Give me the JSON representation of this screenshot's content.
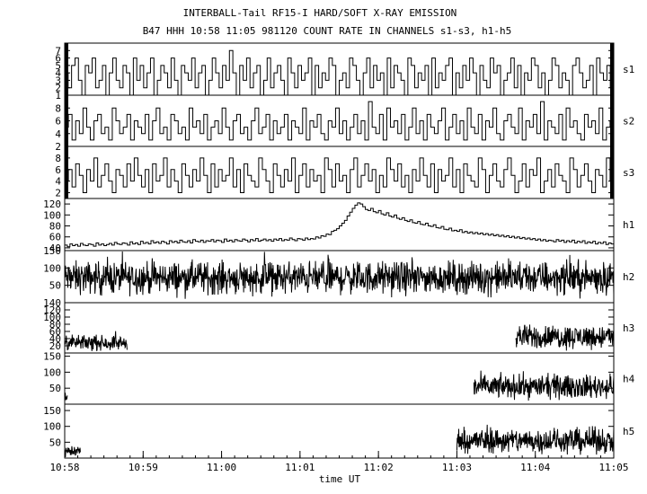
{
  "chart_data": {
    "type": "line",
    "title": "INTERBALL-Tail RF15-I HARD/SOFT X-RAY EMISSION",
    "subtitle": "B47 HHH 10:58 11:05 981120  COUNT RATE IN CHANNELS s1-s3, h1-h5",
    "xlabel": "time UT",
    "x_range": [
      "10:58",
      "11:05"
    ],
    "x_ticks": [
      "10:58",
      "10:59",
      "11:00",
      "11:01",
      "11:02",
      "11:03",
      "11:04",
      "11:05"
    ],
    "panels": [
      {
        "name": "s1",
        "ylim": [
          1,
          8
        ],
        "yticks": [
          "1",
          "2",
          "3",
          "4",
          "5",
          "6",
          "7"
        ],
        "series": [
          {
            "style": "step",
            "x_start": "10:58",
            "x_end": "11:05",
            "samples": 160,
            "values": [
              4,
              2,
              5,
              6,
              3,
              1,
              5,
              4,
              6,
              2,
              3,
              5,
              1,
              4,
              6,
              3,
              2,
              5,
              4,
              1,
              6,
              3,
              5,
              2,
              4,
              6,
              1,
              3,
              5,
              4,
              2,
              6,
              3,
              1,
              5,
              4,
              3,
              6,
              2,
              4,
              5,
              1,
              3,
              6,
              4,
              2,
              5,
              3,
              7,
              4,
              1,
              5,
              3,
              6,
              2,
              4,
              5,
              1,
              3,
              6,
              2,
              4,
              5,
              3,
              1,
              6,
              4,
              2,
              5,
              3,
              4,
              6,
              1,
              5,
              2,
              4,
              3,
              6,
              5,
              1,
              3,
              4,
              2,
              6,
              5,
              3,
              1,
              4,
              6,
              2,
              5,
              3,
              4,
              1,
              6,
              2,
              5,
              4,
              3,
              1,
              6,
              5,
              2,
              4,
              3,
              5,
              1,
              6,
              2,
              4,
              3,
              5,
              6,
              1,
              4,
              2,
              5,
              3,
              6,
              4,
              1,
              5,
              3,
              2,
              6,
              4,
              5,
              1,
              3,
              4,
              6,
              2,
              5,
              1,
              4,
              3,
              6,
              5,
              2,
              4,
              1,
              3,
              6,
              5,
              2,
              4,
              3,
              1,
              5,
              6,
              4,
              2,
              3,
              5,
              1,
              6,
              4,
              3,
              5,
              2
            ]
          }
        ]
      },
      {
        "name": "s2",
        "ylim": [
          2,
          10
        ],
        "yticks": [
          "2",
          "4",
          "6",
          "8"
        ],
        "series": [
          {
            "style": "step",
            "x_start": "10:58",
            "x_end": "11:05",
            "samples": 150,
            "values": [
              5,
              7,
              3,
              6,
              4,
              8,
              5,
              3,
              6,
              7,
              4,
              5,
              3,
              8,
              6,
              4,
              5,
              7,
              3,
              6,
              5,
              4,
              7,
              3,
              6,
              8,
              4,
              5,
              3,
              7,
              6,
              4,
              5,
              3,
              8,
              5,
              6,
              4,
              7,
              3,
              5,
              6,
              4,
              8,
              5,
              3,
              6,
              7,
              4,
              5,
              3,
              6,
              8,
              4,
              5,
              7,
              3,
              6,
              4,
              5,
              7,
              3,
              6,
              5,
              4,
              8,
              3,
              6,
              5,
              7,
              4,
              3,
              6,
              5,
              8,
              4,
              6,
              3,
              5,
              7,
              4,
              6,
              3,
              9,
              5,
              4,
              7,
              3,
              8,
              5,
              6,
              4,
              7,
              3,
              5,
              8,
              4,
              6,
              3,
              7,
              5,
              4,
              6,
              8,
              3,
              5,
              7,
              4,
              6,
              3,
              8,
              5,
              4,
              7,
              3,
              6,
              5,
              8,
              4,
              3,
              6,
              7,
              5,
              4,
              8,
              3,
              6,
              5,
              7,
              4,
              9,
              3,
              6,
              5,
              4,
              7,
              3,
              8,
              5,
              6,
              4,
              3,
              7,
              5,
              6,
              4,
              8,
              3,
              5,
              6
            ]
          }
        ]
      },
      {
        "name": "s3",
        "ylim": [
          1,
          10
        ],
        "yticks": [
          "2",
          "4",
          "6",
          "8"
        ],
        "series": [
          {
            "style": "step",
            "x_start": "10:58",
            "x_end": "11:05",
            "samples": 150,
            "values": [
              4,
              6,
              3,
              7,
              5,
              2,
              6,
              4,
              8,
              3,
              5,
              7,
              4,
              2,
              6,
              5,
              3,
              7,
              4,
              8,
              5,
              3,
              6,
              2,
              7,
              4,
              5,
              8,
              3,
              6,
              4,
              2,
              7,
              5,
              3,
              6,
              4,
              8,
              5,
              2,
              7,
              3,
              6,
              4,
              5,
              8,
              3,
              6,
              2,
              7,
              5,
              4,
              3,
              8,
              6,
              4,
              2,
              7,
              5,
              3,
              6,
              4,
              8,
              2,
              5,
              7,
              3,
              6,
              4,
              5,
              2,
              8,
              6,
              3,
              7,
              4,
              5,
              2,
              6,
              8,
              3,
              5,
              7,
              4,
              6,
              2,
              5,
              3,
              8,
              6,
              4,
              7,
              3,
              5,
              2,
              6,
              4,
              8,
              5,
              3,
              7,
              2,
              6,
              4,
              5,
              8,
              3,
              6,
              2,
              7,
              5,
              4,
              3,
              8,
              6,
              2,
              5,
              7,
              4,
              3,
              6,
              8,
              5,
              2,
              4,
              7,
              3,
              6,
              5,
              8,
              2,
              4,
              6,
              3,
              7,
              5,
              4,
              2,
              8,
              6,
              3,
              5,
              7,
              4,
              2,
              6,
              5,
              3,
              8,
              4
            ]
          }
        ]
      },
      {
        "name": "h1",
        "ylim": [
          35,
          130
        ],
        "yticks": [
          "40",
          "60",
          "80",
          "100",
          "120"
        ],
        "series": [
          {
            "style": "step",
            "x_start": "10:58",
            "x_end": "11:05",
            "samples": 210,
            "values": [
              45,
              42,
              47,
              44,
              46,
              43,
              48,
              45,
              44,
              47,
              46,
              43,
              49,
              45,
              47,
              44,
              46,
              48,
              45,
              50,
              47,
              46,
              49,
              48,
              45,
              51,
              47,
              49,
              46,
              52,
              48,
              50,
              47,
              53,
              49,
              51,
              48,
              52,
              50,
              47,
              53,
              50,
              52,
              49,
              54,
              51,
              50,
              53,
              49,
              55,
              52,
              51,
              54,
              50,
              53,
              52,
              55,
              51,
              54,
              53,
              50,
              56,
              52,
              54,
              51,
              55,
              53,
              52,
              56,
              54,
              51,
              55,
              53,
              57,
              52,
              54,
              56,
              53,
              55,
              52,
              56,
              54,
              57,
              53,
              55,
              54,
              58,
              55,
              53,
              57,
              56,
              54,
              58,
              55,
              57,
              56,
              60,
              58,
              62,
              61,
              65,
              64,
              70,
              72,
              75,
              80,
              85,
              90,
              98,
              105,
              112,
              118,
              122,
              120,
              115,
              110,
              108,
              112,
              106,
              104,
              108,
              102,
              100,
              104,
              98,
              96,
              100,
              94,
              92,
              95,
              90,
              88,
              91,
              86,
              85,
              88,
              83,
              82,
              85,
              80,
              79,
              82,
              77,
              76,
              79,
              74,
              73,
              76,
              71,
              72,
              70,
              73,
              68,
              70,
              67,
              69,
              66,
              68,
              65,
              67,
              64,
              66,
              63,
              65,
              62,
              64,
              61,
              63,
              60,
              62,
              59,
              61,
              58,
              60,
              57,
              59,
              56,
              58,
              55,
              57,
              54,
              56,
              53,
              55,
              52,
              54,
              53,
              51,
              55,
              52,
              54,
              50,
              53,
              51,
              54,
              49,
              52,
              50,
              53,
              48,
              51,
              49,
              52,
              47,
              50,
              48,
              51,
              46,
              49,
              47
            ]
          }
        ]
      },
      {
        "name": "h2",
        "ylim": [
          0,
          150
        ],
        "yticks": [
          "50",
          "100",
          "150"
        ],
        "series": [
          {
            "style": "noise",
            "x_start": "10:58",
            "x_end": "11:05",
            "samples": 1400,
            "mean": 72,
            "spread": 28,
            "values_summary": "dense noisy count rate fluctuating roughly 30-130 across the entire interval"
          }
        ]
      },
      {
        "name": "h3",
        "ylim": [
          0,
          140
        ],
        "yticks": [
          "20",
          "40",
          "60",
          "80",
          "100",
          "120",
          "140"
        ],
        "series": [
          {
            "style": "noise",
            "x_start": "10:58",
            "x_end": "10:58:48",
            "samples": 160,
            "mean": 28,
            "spread": 12
          },
          {
            "style": "noise",
            "x_start": "11:03:45",
            "x_end": "11:05",
            "samples": 260,
            "mean": 45,
            "spread": 20
          }
        ]
      },
      {
        "name": "h4",
        "ylim": [
          0,
          160
        ],
        "yticks": [
          "50",
          "100",
          "150"
        ],
        "series": [
          {
            "style": "noise",
            "x_start": "10:58",
            "x_end": "10:58:02",
            "samples": 6,
            "mean": 20,
            "spread": 10
          },
          {
            "style": "noise",
            "x_start": "11:03:13",
            "x_end": "11:05",
            "samples": 380,
            "mean": 55,
            "spread": 22
          }
        ]
      },
      {
        "name": "h5",
        "ylim": [
          0,
          170
        ],
        "yticks": [
          "50",
          "100",
          "150"
        ],
        "series": [
          {
            "style": "noise",
            "x_start": "10:58",
            "x_end": "10:58:12",
            "samples": 45,
            "mean": 22,
            "spread": 12
          },
          {
            "style": "noise",
            "x_start": "11:03",
            "x_end": "11:05",
            "samples": 420,
            "mean": 55,
            "spread": 24
          }
        ]
      }
    ]
  }
}
